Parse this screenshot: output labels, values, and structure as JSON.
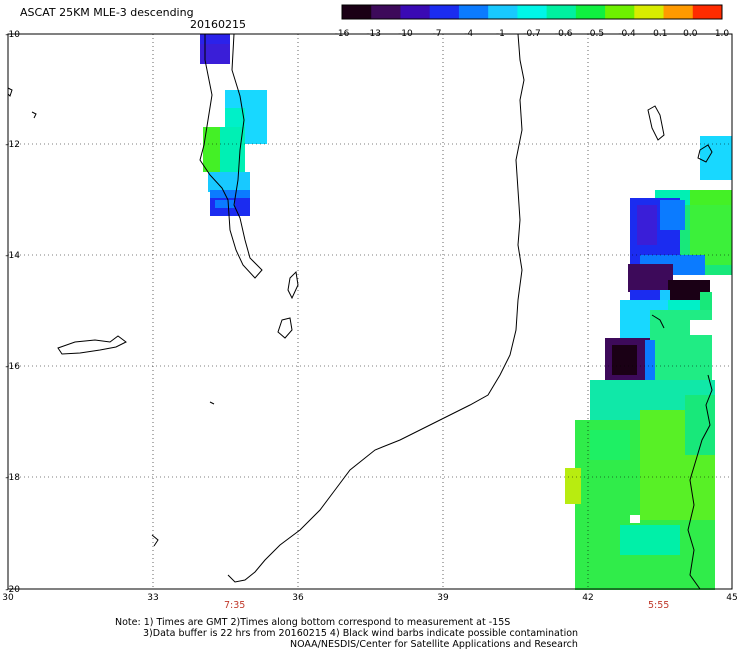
{
  "header": {
    "title": "ASCAT 25KM MLE-3 descending",
    "date": "20160215"
  },
  "colorbar": {
    "labels": [
      "-16",
      "-13",
      "-10",
      "-7",
      "-4",
      "-1",
      "-0.7",
      "-0.6",
      "-0.5",
      "-0.4",
      "-0.1",
      "0.0",
      "1.0"
    ],
    "colors": [
      "#1a0015",
      "#3d0a5a",
      "#3a0ab4",
      "#1b2cf0",
      "#0b7bff",
      "#18c9ff",
      "#00f6e8",
      "#00f0a0",
      "#10f040",
      "#6ef000",
      "#d8ec00",
      "#ff9a00",
      "#ff2b00"
    ]
  },
  "axes": {
    "x_ticks": [
      "30",
      "33",
      "36",
      "39",
      "42",
      "45"
    ],
    "y_ticks": [
      "-10",
      "-12",
      "-14",
      "-16",
      "-18",
      "-20"
    ]
  },
  "pass_times": [
    "7:35",
    "5:55"
  ],
  "footer": {
    "line1": "Note: 1) Times are GMT 2)Times along bottom correspond to measurement at -15S",
    "line2": "3)Data buffer is 22 hrs from 20160215 4) Black wind barbs indicate possible contamination",
    "line3": "NOAA/NESDIS/Center for Satellite Applications and Research"
  }
}
